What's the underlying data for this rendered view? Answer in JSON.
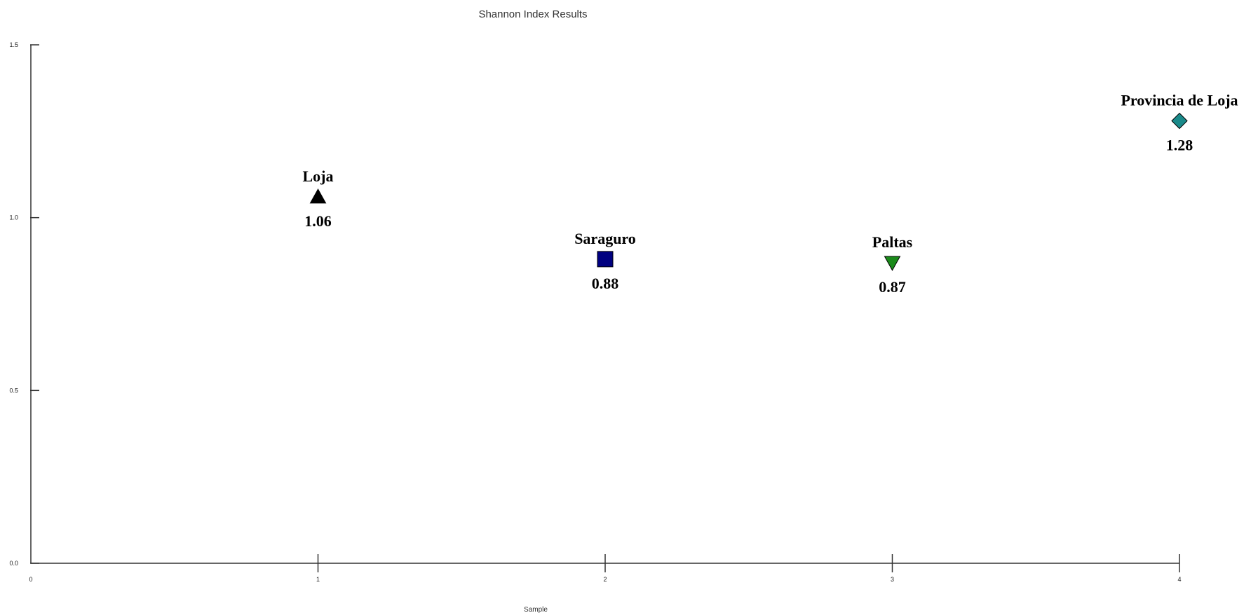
{
  "chart_data": {
    "type": "scatter",
    "title": "Shannon Index Results",
    "xlabel": "Sample",
    "ylabel": "",
    "xlim": [
      0,
      4
    ],
    "ylim": [
      0,
      1.5
    ],
    "x_ticks": [
      "0",
      "1",
      "2",
      "3",
      "4"
    ],
    "y_ticks": [
      "0.0",
      "0.5",
      "1.0",
      "1.5"
    ],
    "grid": false,
    "points": [
      {
        "name": "Loja",
        "x": 1,
        "y": 1.06,
        "label": "1.06",
        "marker": "triangle-up",
        "color": "#000000"
      },
      {
        "name": "Saraguro",
        "x": 2,
        "y": 0.88,
        "label": "0.88",
        "marker": "square",
        "color": "#000080"
      },
      {
        "name": "Paltas",
        "x": 3,
        "y": 0.87,
        "label": "0.87",
        "marker": "triangle-down",
        "color": "#1a8a1a"
      },
      {
        "name": "Provincia de Loja",
        "x": 4,
        "y": 1.28,
        "label": "1.28",
        "marker": "diamond",
        "color": "#1a8a8a"
      }
    ]
  }
}
